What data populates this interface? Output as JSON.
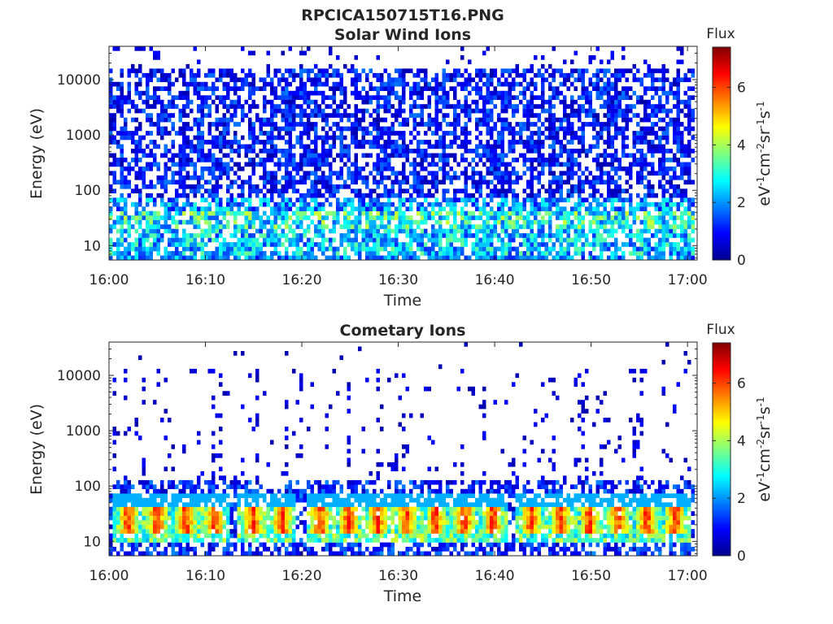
{
  "figure": {
    "title": "RPCICA150715T16.PNG"
  },
  "colorbar": {
    "title": "Flux",
    "ticks": [
      "0",
      "2",
      "4",
      "6"
    ],
    "range": [
      0,
      7.4
    ],
    "colormap": "jet",
    "colors": [
      "#00008f",
      "#0000ff",
      "#0080ff",
      "#00ffff",
      "#80ff80",
      "#ffff00",
      "#ff8000",
      "#ff0000",
      "#800000"
    ]
  },
  "chart_data": [
    {
      "type": "heatmap",
      "title": "Solar Wind Ions",
      "xlabel": "Time",
      "ylabel": "Energy (eV)",
      "y_scale": "log",
      "ylim": [
        5.5,
        40000
      ],
      "xlim": [
        "16:00",
        "17:01"
      ],
      "x_ticks": [
        "16:00",
        "16:10",
        "16:20",
        "16:30",
        "16:40",
        "16:50",
        "17:00"
      ],
      "y_ticks": [
        "10",
        "100",
        "1000",
        "10000"
      ],
      "z_label": "eV-1cm-2sr-1s-1",
      "z_range": [
        0,
        7.4
      ],
      "description_values": {
        "energy_10_20_eV_flux": 3.0,
        "energy_20_60_eV_flux": 3.5,
        "energy_60_15000_eV_flux": 1.0,
        "energy_above_15000_eV_flux": 0.5
      }
    },
    {
      "type": "heatmap",
      "title": "Cometary Ions",
      "xlabel": "Time",
      "ylabel": "Energy (eV)",
      "y_scale": "log",
      "ylim": [
        5.5,
        40000
      ],
      "xlim": [
        "16:00",
        "17:01"
      ],
      "x_ticks": [
        "16:00",
        "16:10",
        "16:20",
        "16:30",
        "16:40",
        "16:50",
        "17:00"
      ],
      "y_ticks": [
        "10",
        "100",
        "1000",
        "10000"
      ],
      "z_label": "eV-1cm-2sr-1s-1",
      "z_range": [
        0,
        7.4
      ],
      "burst_times": [
        "16:02",
        "16:05",
        "16:08",
        "16:11",
        "16:15",
        "16:18",
        "16:22",
        "16:25",
        "16:28",
        "16:31",
        "16:34",
        "16:37",
        "16:40",
        "16:44",
        "16:47",
        "16:50",
        "16:53",
        "16:56",
        "16:59"
      ],
      "burst_energy_range_eV": [
        15,
        40
      ],
      "burst_peak_flux": 6.8
    }
  ]
}
